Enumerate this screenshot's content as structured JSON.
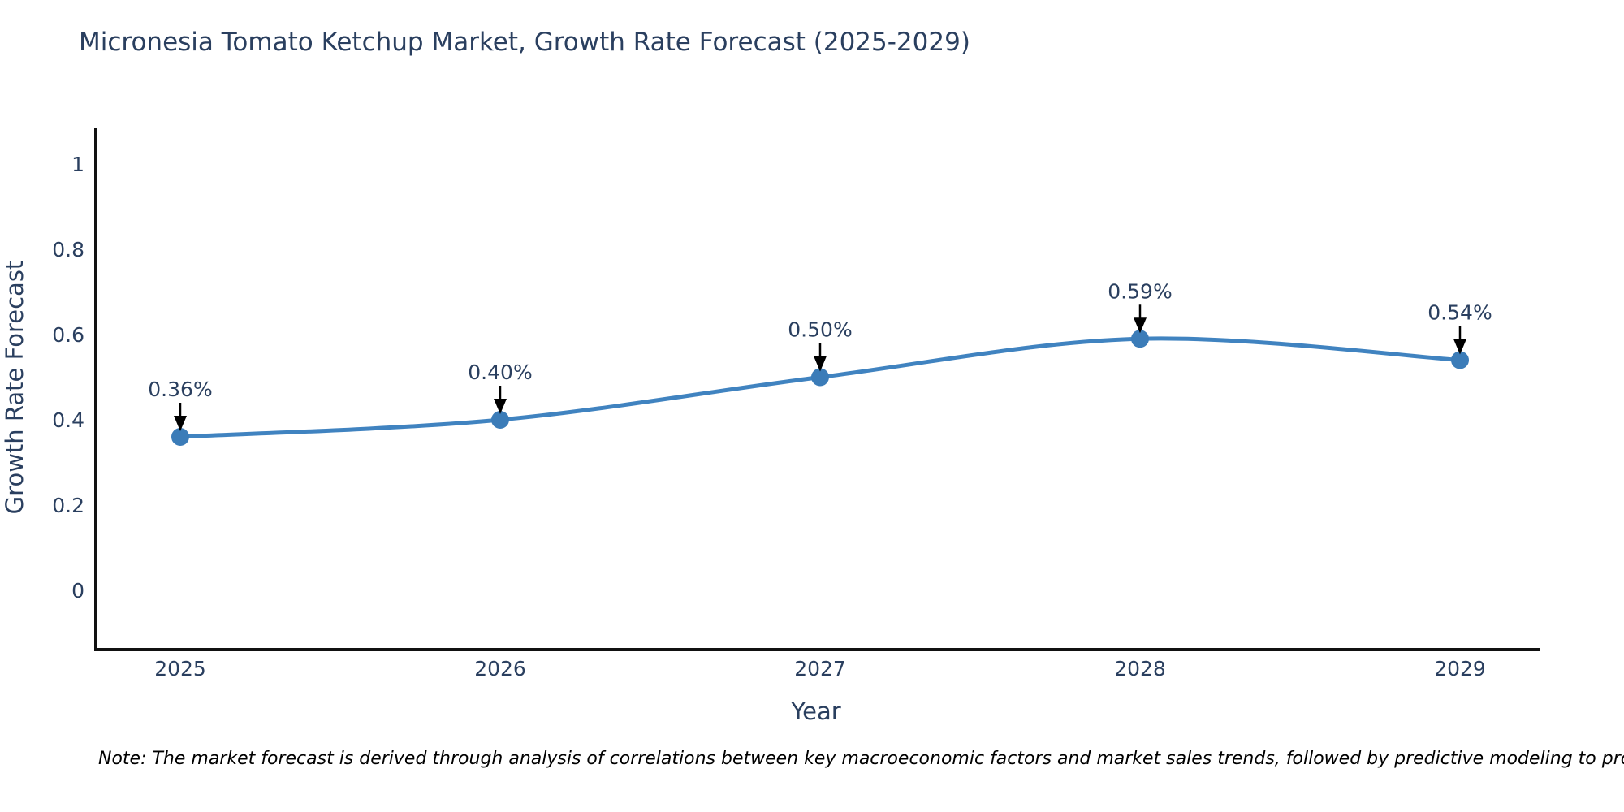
{
  "title": "Micronesia Tomato Ketchup Market, Growth Rate Forecast (2025-2029)",
  "x_axis": {
    "label": "Year",
    "ticks": [
      "2025",
      "2026",
      "2027",
      "2028",
      "2029"
    ]
  },
  "y_axis": {
    "label": "Growth Rate Forecast",
    "ticks": [
      "1",
      "0.8",
      "0.6",
      "0.4",
      "0.2",
      "0"
    ]
  },
  "note": "Note: The market forecast is derived through analysis of correlations between key macroeconomic factors and market sales trends, followed by predictive modeling to project future sales",
  "chart_data": {
    "type": "line",
    "title": "Micronesia Tomato Ketchup Market, Growth Rate Forecast (2025-2029)",
    "x": [
      2025,
      2026,
      2027,
      2028,
      2029
    ],
    "series": [
      {
        "name": "Growth Rate Forecast",
        "values": [
          0.36,
          0.4,
          0.5,
          0.59,
          0.54
        ]
      }
    ],
    "point_labels": [
      "0.36%",
      "0.40%",
      "0.50%",
      "0.59%",
      "0.54%"
    ],
    "xlabel": "Year",
    "ylabel": "Growth Rate Forecast",
    "yticks": [
      0,
      0.2,
      0.4,
      0.6,
      0.8,
      1
    ],
    "ylim": [
      -0.14,
      1.08
    ],
    "line_shape": "spline",
    "grid": false,
    "legend_position": "none",
    "annotation_style": "down-arrow",
    "colors": {
      "line": "#4083c0",
      "marker": "#3b7cb8",
      "arrow": "#000000",
      "font": "#2a3f5f",
      "axis": "#111111",
      "note_text": "#000000"
    }
  }
}
